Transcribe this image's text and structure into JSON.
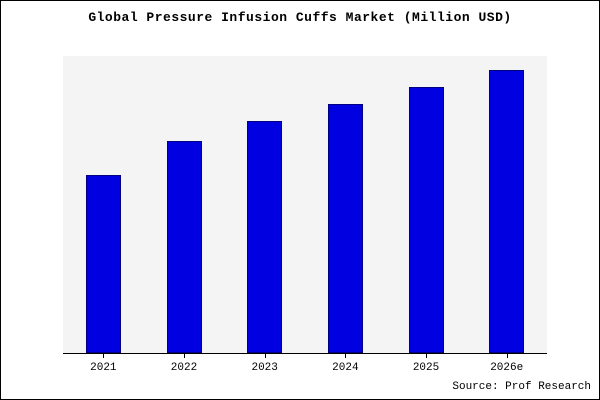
{
  "header": {
    "title": "Global Pressure Infusion Cuffs Market (Million USD)"
  },
  "footer": {
    "source_label": "Source: Prof Research"
  },
  "chart_data": {
    "type": "bar",
    "title": "Global Pressure Infusion Cuffs Market (Million USD)",
    "categories": [
      "2021",
      "2022",
      "2023",
      "2024",
      "2025",
      "2026e"
    ],
    "values": [
      63,
      75,
      82,
      88,
      94,
      100
    ],
    "xlabel": "",
    "ylabel": "",
    "ylim": [
      0,
      105
    ],
    "grid": false,
    "legend_position": "none",
    "bar_color": "#0000e0",
    "bar_border_color": "#000080",
    "plot_background": "#f4f4f4",
    "units": "Million USD"
  }
}
